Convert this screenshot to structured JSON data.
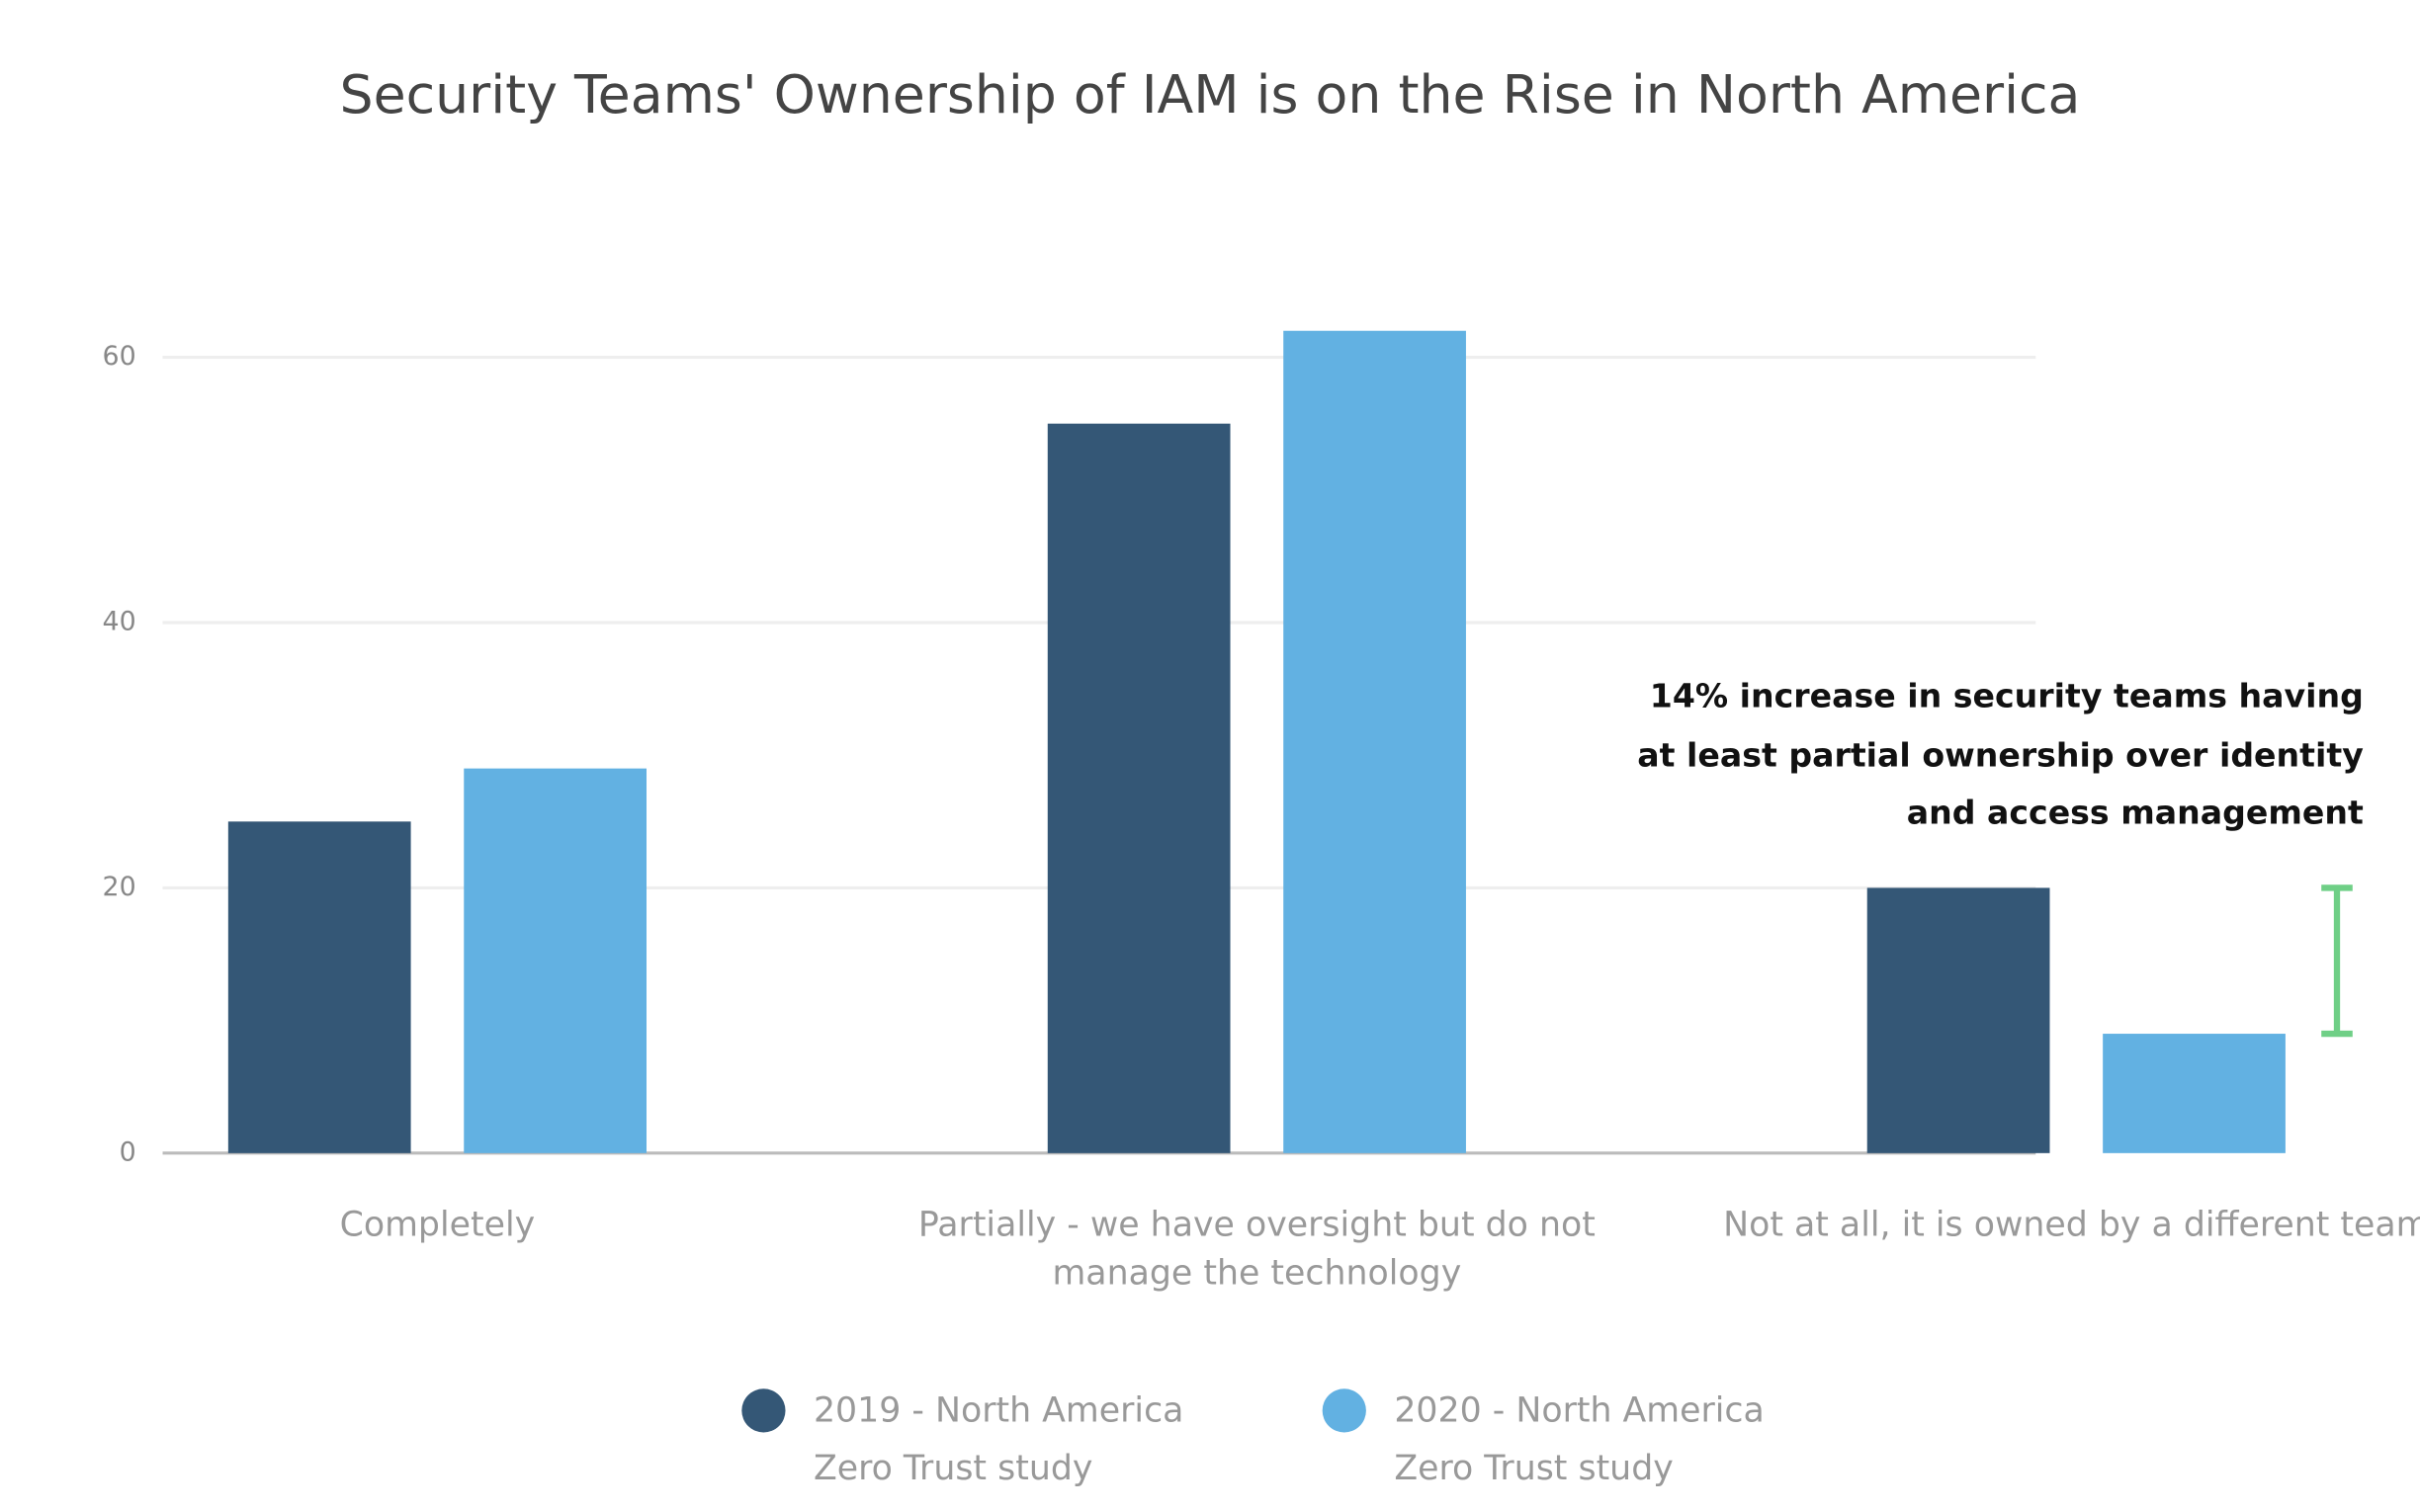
{
  "chart_data": {
    "type": "bar",
    "title": "Security Teams' Ownership of IAM is on the Rise in North America",
    "categories": [
      "Completely",
      "Partially - we have oversight but do not manage the technology",
      "Not at all, it is owned by a different team"
    ],
    "series": [
      {
        "name": "2019 - North America Zero Trust study",
        "color": "#345776",
        "values": [
          25,
          55,
          20
        ]
      },
      {
        "name": "2020 - North America Zero Trust study",
        "color": "#62b1e2",
        "values": [
          29,
          62,
          9
        ]
      }
    ],
    "ylim": [
      0,
      70
    ],
    "yticks": [
      0,
      20,
      40,
      60
    ],
    "grid": true,
    "annotation": "14% increase in security teams having at least partial ownership over identity and access management",
    "annotation_color": "#6fcf86"
  }
}
